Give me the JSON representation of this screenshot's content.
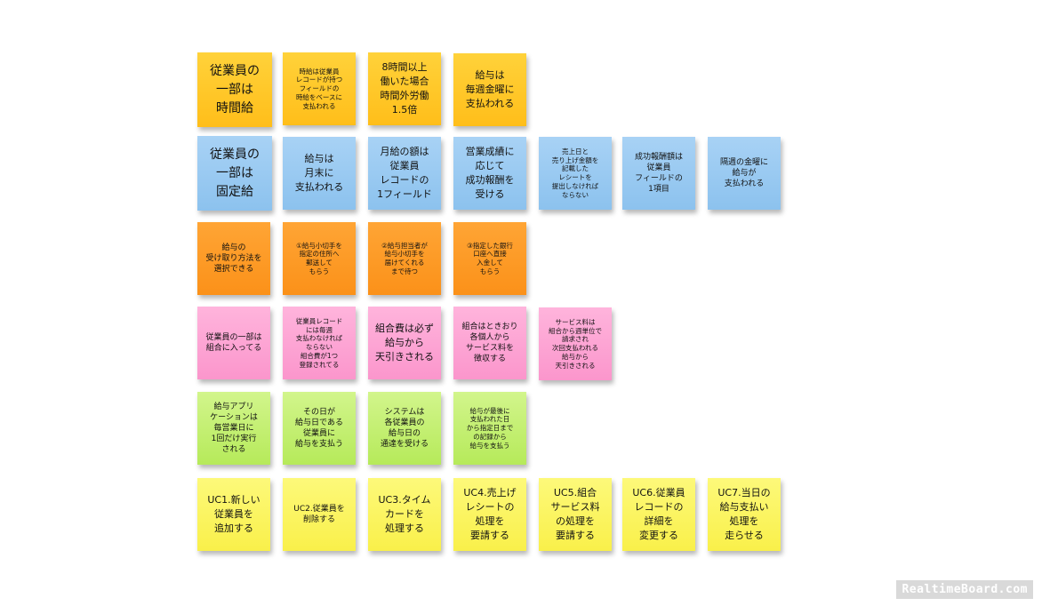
{
  "board": {
    "rows": [
      {
        "color": "orange-light",
        "notes": [
          "従業員の\n一部は\n時間給",
          "時給は従業員\nレコードが持つ\nフィールドの\n時給をベースに\n支払われる",
          "8時間以上\n働いた場合\n時間外労働\n1.5倍",
          "給与は\n毎週金曜に\n支払われる"
        ]
      },
      {
        "color": "blue",
        "notes": [
          "従業員の\n一部は\n固定給",
          "給与は\n月末に\n支払われる",
          "月給の額は\n従業員\nレコードの\n1フィールド",
          "営業成績に\n応じて\n成功報酬を\n受ける",
          "売上日と\n売り上げ金額を\n記載した\nレシートを\n提出しなければ\nならない",
          "成功報酬額は\n従業員\nフィールドの\n1項目",
          "隔週の金曜に\n給与が\n支払われる"
        ]
      },
      {
        "color": "orange",
        "notes": [
          "給与の\n受け取り方法を\n選択できる",
          "①給与小切手を\n指定の住所へ\n郵送して\nもらう",
          "②給与担当者が\n給与小切手を\n届けてくれる\nまで待つ",
          "③指定した銀行\n口座へ直接\n入金して\nもらう"
        ]
      },
      {
        "color": "pink",
        "notes": [
          "従業員の一部は\n組合に入ってる",
          "従業員レコード\nには毎週\n支払わなければ\nならない\n組合費が1つ\n登録されてる",
          "組合費は必ず\n給与から\n天引きされる",
          "組合はときおり\n各個人から\nサービス料を\n徴収する",
          "サービス料は\n組合から週単位で\n請求され\n次回支払われる\n給与から\n天引きされる"
        ]
      },
      {
        "color": "green",
        "notes": [
          "給与アプリ\nケーションは\n毎営業日に\n1回だけ実行\nされる",
          "その日が\n給与日である\n従業員に\n給与を支払う",
          "システムは\n各従業員の\n給与日の\n通達を受ける",
          "給与が最後に\n支払われた日\nから指定日まで\nの記録から\n給与を支払う"
        ]
      },
      {
        "color": "yellow",
        "notes": [
          "UC1.新しい\n従業員を\n追加する",
          "UC2.従業員を\n削除する",
          "UC3.タイム\nカードを\n処理する",
          "UC4.売上げ\nレシートの\n処理を\n要請する",
          "UC5.組合\nサービス料\nの処理を\n要請する",
          "UC6.従業員\nレコードの\n詳細を\n変更する",
          "UC7.当日の\n給与支払い\n処理を\n走らせる"
        ]
      }
    ]
  },
  "watermark": "RealtimeBoard.com"
}
